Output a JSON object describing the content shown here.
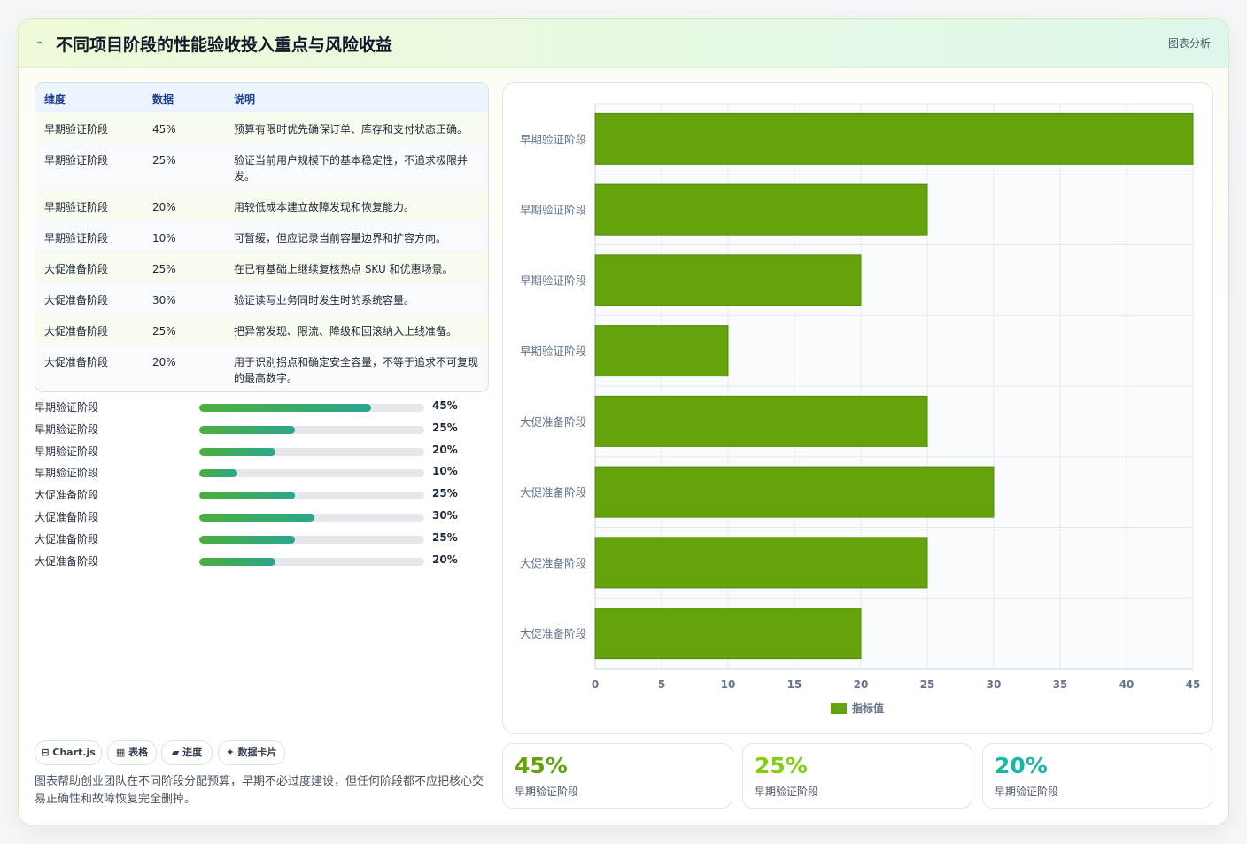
{
  "header": {
    "title": "不同项目阶段的性能验收投入重点与风险收益",
    "badge": "图表分析"
  },
  "table": {
    "headers": [
      "维度",
      "数据",
      "说明"
    ],
    "rows": [
      {
        "dim": "早期验证阶段",
        "value": "45%",
        "desc": "预算有限时优先确保订单、库存和支付状态正确。"
      },
      {
        "dim": "早期验证阶段",
        "value": "25%",
        "desc": "验证当前用户规模下的基本稳定性，不追求极限并发。"
      },
      {
        "dim": "早期验证阶段",
        "value": "20%",
        "desc": "用较低成本建立故障发现和恢复能力。"
      },
      {
        "dim": "早期验证阶段",
        "value": "10%",
        "desc": "可暂缓，但应记录当前容量边界和扩容方向。"
      },
      {
        "dim": "大促准备阶段",
        "value": "25%",
        "desc": "在已有基础上继续复核热点 SKU 和优惠场景。"
      },
      {
        "dim": "大促准备阶段",
        "value": "30%",
        "desc": "验证读写业务同时发生时的系统容量。"
      },
      {
        "dim": "大促准备阶段",
        "value": "25%",
        "desc": "把异常发现、限流、降级和回滚纳入上线准备。"
      },
      {
        "dim": "大促准备阶段",
        "value": "20%",
        "desc": "用于识别拐点和确定安全容量，不等于追求不可复现的最高数字。"
      }
    ]
  },
  "progress": [
    {
      "label": "早期验证阶段",
      "value": 45,
      "text": "45%"
    },
    {
      "label": "早期验证阶段",
      "value": 25,
      "text": "25%"
    },
    {
      "label": "早期验证阶段",
      "value": 20,
      "text": "20%"
    },
    {
      "label": "早期验证阶段",
      "value": 10,
      "text": "10%"
    },
    {
      "label": "大促准备阶段",
      "value": 25,
      "text": "25%"
    },
    {
      "label": "大促准备阶段",
      "value": 30,
      "text": "30%"
    },
    {
      "label": "大促准备阶段",
      "value": 25,
      "text": "25%"
    },
    {
      "label": "大促准备阶段",
      "value": 20,
      "text": "20%"
    }
  ],
  "chips": [
    "⊟ Chart.js",
    "▦ 表格",
    "▰ 进度",
    "✦ 数据卡片"
  ],
  "footer_text": "图表帮助创业团队在不同阶段分配预算，早期不必过度建设，但任何阶段都不应把核心交易正确性和故障恢复完全删掉。",
  "stats": [
    {
      "value": "45%",
      "label": "早期验证阶段",
      "color": "#65a30d"
    },
    {
      "value": "25%",
      "label": "早期验证阶段",
      "color": "#84cc16"
    },
    {
      "value": "20%",
      "label": "早期验证阶段",
      "color": "#14b8a6"
    }
  ],
  "chart_data": {
    "type": "bar",
    "orientation": "horizontal",
    "categories": [
      "早期验证阶段",
      "早期验证阶段",
      "早期验证阶段",
      "早期验证阶段",
      "大促准备阶段",
      "大促准备阶段",
      "大促准备阶段",
      "大促准备阶段"
    ],
    "series": [
      {
        "name": "指标值",
        "values": [
          45,
          25,
          20,
          10,
          25,
          30,
          25,
          20
        ],
        "color": "#65a30d"
      }
    ],
    "xlim": [
      0,
      45
    ],
    "xticks": [
      "0",
      "5",
      "10",
      "15",
      "20",
      "25",
      "30",
      "35",
      "40",
      "45"
    ],
    "grid": true,
    "legend": "bottom"
  }
}
